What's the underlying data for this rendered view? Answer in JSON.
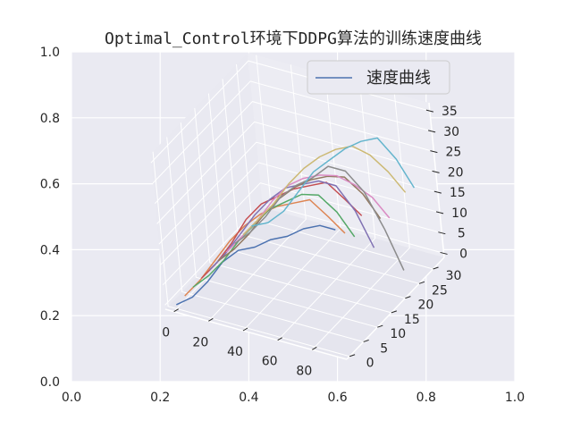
{
  "chart_data": {
    "type": "line",
    "projection": "3d",
    "title": "Optimal_Control环境下DDPG算法的训练速度曲线",
    "legend": {
      "label": "速度曲线",
      "color": "#4c72b0",
      "placement": "top-right"
    },
    "background": "#eaeaf2",
    "grid": true,
    "outer_axes": {
      "x_ticks": [
        "0.0",
        "0.2",
        "0.4",
        "0.6",
        "0.8",
        "1.0"
      ],
      "y_ticks": [
        "0.0",
        "0.2",
        "0.4",
        "0.6",
        "0.8",
        "1.0"
      ],
      "xlim": [
        0,
        1
      ],
      "ylim": [
        0,
        1
      ]
    },
    "axes3d": {
      "x_ticks": [
        0,
        20,
        40,
        60,
        80
      ],
      "y_ticks": [
        0,
        5,
        10,
        15,
        20,
        25,
        30
      ],
      "z_ticks": [
        0,
        5,
        10,
        15,
        20,
        25,
        30,
        35
      ],
      "xlim": [
        -5,
        100
      ],
      "ylim": [
        -1,
        34
      ],
      "zlim": [
        -1,
        37
      ]
    },
    "series": [
      {
        "color": "#4c72b0",
        "x": [
          0,
          10,
          20,
          30,
          40,
          50,
          60,
          70,
          80,
          90,
          99
        ],
        "y": [
          0,
          0,
          0,
          0,
          0,
          0,
          0,
          0,
          0,
          0,
          0
        ],
        "z": [
          0,
          3,
          8,
          14,
          18,
          20,
          23,
          25,
          28,
          30,
          30
        ]
      },
      {
        "color": "#dd8452",
        "x": [
          0,
          10,
          20,
          30,
          40,
          50,
          60,
          70,
          80,
          90,
          99
        ],
        "y": [
          3,
          3,
          3,
          3,
          3,
          3,
          3,
          3,
          3,
          3,
          3
        ],
        "z": [
          0,
          5,
          11,
          17,
          22,
          26,
          29,
          31,
          33,
          30,
          27
        ]
      },
      {
        "color": "#55a868",
        "x": [
          0,
          10,
          20,
          30,
          40,
          50,
          60,
          70,
          80,
          90,
          99
        ],
        "y": [
          6,
          6,
          6,
          6,
          6,
          6,
          6,
          6,
          6,
          6,
          6
        ],
        "z": [
          0,
          4,
          9,
          15,
          20,
          25,
          28,
          31,
          32,
          29,
          24
        ]
      },
      {
        "color": "#c44e52",
        "x": [
          0,
          10,
          20,
          30,
          40,
          50,
          60,
          70,
          80,
          90,
          99
        ],
        "y": [
          9,
          9,
          9,
          9,
          9,
          9,
          9,
          9,
          9,
          9,
          9
        ],
        "z": [
          0,
          5,
          11,
          18,
          23,
          26,
          29,
          31,
          33,
          30,
          27
        ]
      },
      {
        "color": "#8172b3",
        "x": [
          0,
          10,
          20,
          30,
          40,
          50,
          60,
          70,
          80,
          90,
          99
        ],
        "y": [
          12,
          12,
          12,
          12,
          12,
          12,
          12,
          12,
          12,
          12,
          12
        ],
        "z": [
          0,
          5,
          11,
          17,
          22,
          26,
          28,
          30,
          30,
          25,
          17
        ]
      },
      {
        "color": "#937860",
        "x": [
          0,
          10,
          20,
          30,
          40,
          50,
          60,
          70,
          80,
          90,
          99
        ],
        "y": [
          15,
          15,
          15,
          15,
          15,
          15,
          15,
          15,
          15,
          15,
          15
        ],
        "z": [
          0,
          4,
          9,
          15,
          20,
          24,
          27,
          29,
          30,
          27,
          22
        ]
      },
      {
        "color": "#da8bc3",
        "x": [
          0,
          10,
          20,
          30,
          40,
          50,
          60,
          70,
          80,
          90,
          99
        ],
        "y": [
          18,
          18,
          18,
          18,
          18,
          18,
          18,
          18,
          18,
          18,
          18
        ],
        "z": [
          0,
          5,
          10,
          16,
          21,
          24,
          26,
          27,
          26,
          24,
          20
        ]
      },
      {
        "color": "#8c8c8c",
        "x": [
          0,
          10,
          20,
          30,
          40,
          50,
          60,
          70,
          80,
          90,
          99
        ],
        "y": [
          21,
          21,
          21,
          21,
          21,
          21,
          21,
          21,
          21,
          21,
          21
        ],
        "z": [
          0,
          4,
          9,
          15,
          19,
          22,
          26,
          26,
          22,
          14,
          5
        ]
      },
      {
        "color": "#ccb974",
        "x": [
          0,
          10,
          20,
          30,
          40,
          50,
          60,
          70,
          80,
          90,
          99
        ],
        "y": [
          24,
          24,
          24,
          24,
          24,
          24,
          24,
          24,
          24,
          24,
          24
        ],
        "z": [
          0,
          5,
          10,
          16,
          21,
          25,
          28,
          30,
          29,
          26,
          22
        ]
      },
      {
        "color": "#64b5cd",
        "x": [
          0,
          10,
          20,
          30,
          40,
          50,
          60,
          70,
          80,
          90,
          99
        ],
        "y": [
          27,
          27,
          27,
          27,
          27,
          27,
          27,
          27,
          27,
          27,
          27
        ],
        "z": [
          0,
          2,
          6,
          12,
          18,
          22,
          26,
          29,
          31,
          27,
          21
        ]
      }
    ]
  }
}
